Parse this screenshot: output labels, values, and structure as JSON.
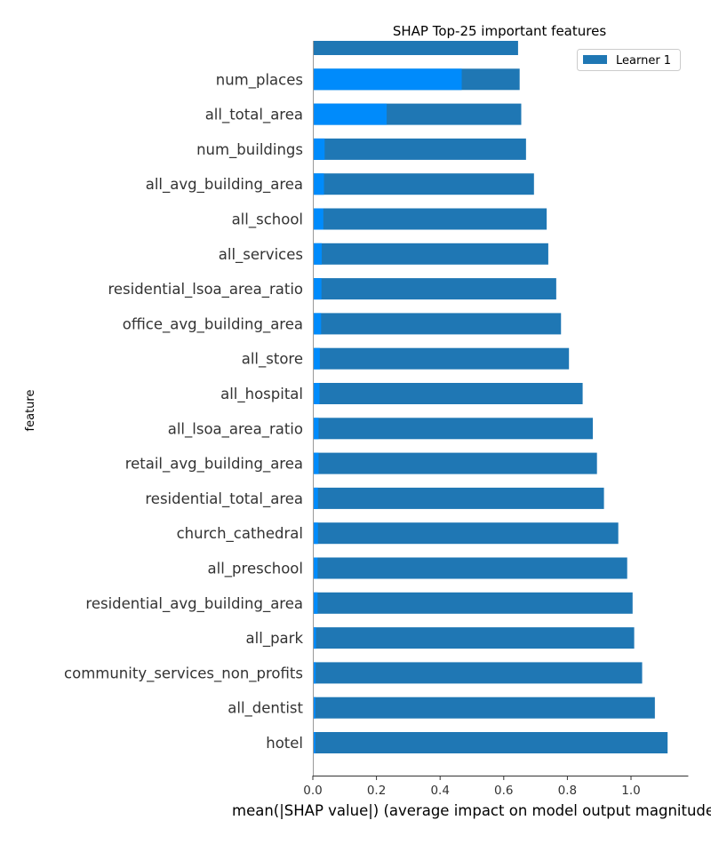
{
  "chart_data": {
    "type": "bar",
    "orientation": "horizontal",
    "title": "SHAP Top-25 important features",
    "xlabel": "mean(|SHAP value|) (average impact on model output magnitude)",
    "ylabel": "feature",
    "xlim": [
      0,
      1.18
    ],
    "x_ticks": [
      "0.0",
      "0.2",
      "0.4",
      "0.6",
      "0.8",
      "1.0"
    ],
    "legend": {
      "placement": "top-right",
      "entries": [
        "Learner 1"
      ]
    },
    "grid": false,
    "colors": {
      "learner": "#1f77b4",
      "overlay": "#008bfb"
    },
    "categories": [
      "",
      "num_places",
      "all_total_area",
      "num_buildings",
      "all_avg_building_area",
      "all_school",
      "all_services",
      "residential_lsoa_area_ratio",
      "office_avg_building_area",
      "all_store",
      "all_hospital",
      "all_lsoa_area_ratio",
      "retail_avg_building_area",
      "residential_total_area",
      "church_cathedral",
      "all_preschool",
      "residential_avg_building_area",
      "all_park",
      "community_services_non_profits",
      "all_dentist",
      "hotel"
    ],
    "series": [
      {
        "name": "Learner 1",
        "values": [
          0.645,
          0.65,
          0.655,
          0.67,
          0.695,
          0.735,
          0.74,
          0.765,
          0.78,
          0.805,
          0.848,
          0.88,
          0.893,
          0.915,
          0.96,
          0.988,
          1.005,
          1.01,
          1.035,
          1.075,
          1.115
        ]
      },
      {
        "values": [
          0.0,
          0.468,
          0.232,
          0.037,
          0.035,
          0.033,
          0.028,
          0.027,
          0.026,
          0.022,
          0.021,
          0.018,
          0.018,
          0.016,
          0.016,
          0.015,
          0.015,
          0.01,
          0.009,
          0.008,
          0.008
        ]
      }
    ]
  }
}
